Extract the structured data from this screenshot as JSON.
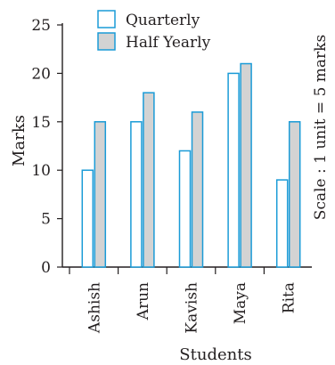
{
  "chart_data": {
    "type": "bar",
    "categories": [
      "Ashish",
      "Arun",
      "Kavish",
      "Maya",
      "Rita"
    ],
    "series": [
      {
        "name": "Quarterly",
        "values": [
          10,
          15,
          12,
          20,
          9
        ],
        "fill": "#ffffff"
      },
      {
        "name": "Half Yearly",
        "values": [
          15,
          18,
          16,
          21,
          15
        ],
        "fill": "#d3d3d3"
      }
    ],
    "xlabel": "Students",
    "ylabel": "Marks",
    "ylim": [
      0,
      25
    ],
    "yticks": [
      0,
      5,
      10,
      15,
      20,
      25
    ],
    "grid": false,
    "legend_position": "top",
    "annotation": "Scale :  1 unit = 5 marks",
    "bar_stroke": "#1a9bd7",
    "axis_color": "#231f20"
  }
}
